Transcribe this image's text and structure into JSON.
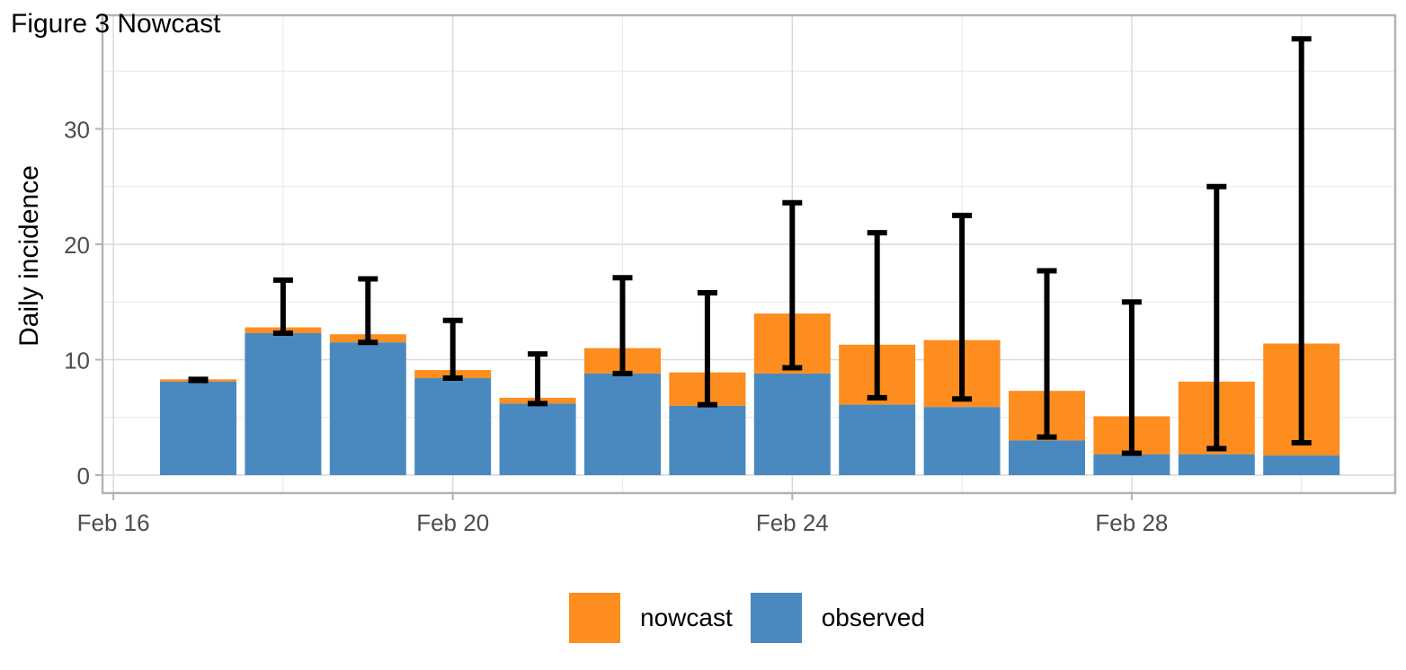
{
  "title": "Figure 3 Nowcast",
  "colors": {
    "nowcast": "#FC8D1E",
    "observed": "#4A89BF",
    "errorbar": "#000000"
  },
  "legend": [
    {
      "key": "nowcast",
      "label": "nowcast"
    },
    {
      "key": "observed",
      "label": "observed"
    }
  ],
  "chart_data": {
    "type": "bar",
    "stacked": true,
    "title": "Figure 3 Nowcast",
    "xlabel": "",
    "ylabel": "Daily incidence",
    "x_ticks": [
      "Feb 16",
      "Feb 20",
      "Feb 24",
      "Feb 28"
    ],
    "y_ticks": [
      0,
      10,
      20,
      30
    ],
    "xlim": [
      "Feb 15.5",
      "Mar 4.3"
    ],
    "ylim": [
      -1.5,
      39.5
    ],
    "grid": true,
    "legend_position": "bottom",
    "categories": [
      "Feb 17",
      "Feb 18",
      "Feb 19",
      "Feb 20",
      "Feb 21",
      "Feb 22",
      "Feb 23",
      "Feb 24",
      "Feb 25",
      "Feb 26",
      "Feb 27",
      "Feb 28",
      "Feb 29",
      "Mar 1"
    ],
    "series": [
      {
        "name": "observed",
        "values": [
          8.1,
          12.3,
          11.5,
          8.4,
          6.2,
          8.8,
          6.0,
          8.8,
          6.1,
          5.9,
          3.0,
          1.8,
          1.8,
          1.7
        ]
      },
      {
        "name": "nowcast",
        "values": [
          0.2,
          0.5,
          0.7,
          0.7,
          0.5,
          2.2,
          2.9,
          5.2,
          5.2,
          5.8,
          4.3,
          3.3,
          6.3,
          9.7
        ]
      }
    ],
    "error_bars": {
      "lower": [
        8.2,
        12.3,
        11.5,
        8.4,
        6.2,
        8.8,
        6.1,
        9.3,
        6.7,
        6.6,
        3.3,
        1.9,
        2.3,
        2.8
      ],
      "upper": [
        8.3,
        16.9,
        17.0,
        13.4,
        10.5,
        17.1,
        15.8,
        23.6,
        21.0,
        22.5,
        17.7,
        15.0,
        25.0,
        37.8
      ]
    }
  }
}
